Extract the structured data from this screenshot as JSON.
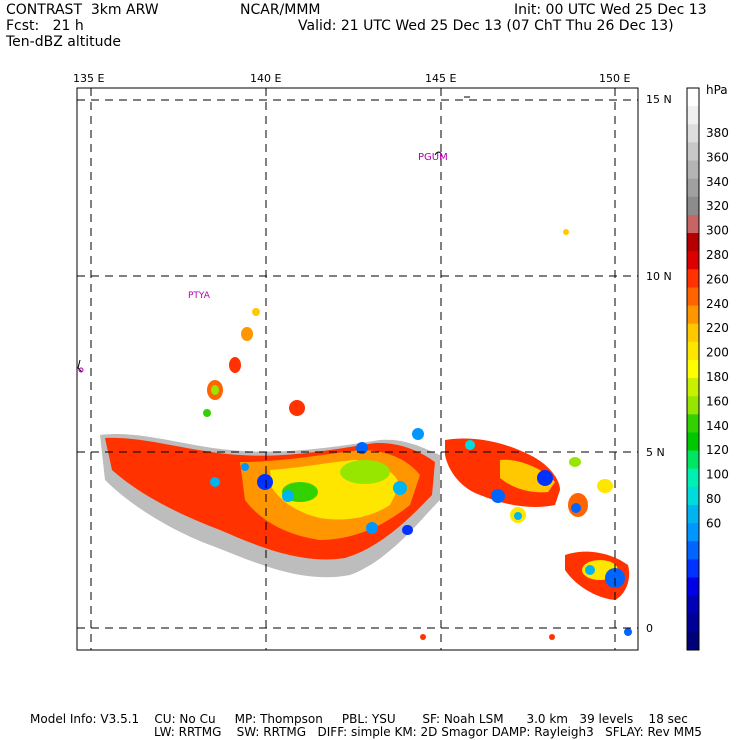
{
  "header": {
    "title_left": "CONTRAST  3km ARW",
    "forecast": "Fcst:   21 h",
    "field": "Ten-dBZ altitude",
    "center": "NCAR/MMM",
    "init": "Init: 00 UTC Wed 25 Dec 13",
    "valid": "Valid: 21 UTC Wed 25 Dec 13 (07 ChT Thu 26 Dec 13)"
  },
  "map": {
    "lon_labels": [
      "135 E",
      "140 E",
      "145 E",
      "150 E"
    ],
    "lat_labels": [
      "15 N",
      "10 N",
      "5 N",
      "0"
    ],
    "places": [
      "PGUM",
      "PTYA"
    ]
  },
  "colorbar": {
    "unit": "hPa",
    "labels": [
      "380",
      "360",
      "340",
      "320",
      "300",
      "280",
      "260",
      "240",
      "220",
      "200",
      "180",
      "160",
      "140",
      "120",
      "100",
      "80",
      "60"
    ],
    "colors": [
      "#ffffff",
      "#f0f0f0",
      "#dddddd",
      "#c8c8c8",
      "#b4b4b4",
      "#a0a0a0",
      "#8c8c8c",
      "#c86464",
      "#b40000",
      "#dc0000",
      "#ff3200",
      "#ff6400",
      "#ff9600",
      "#ffc800",
      "#ffe600",
      "#ffff00",
      "#c8f000",
      "#96e600",
      "#32d200",
      "#00c800",
      "#00e664",
      "#00f0b4",
      "#00dcdc",
      "#00b4f0",
      "#0096ff",
      "#0064ff",
      "#0032ff",
      "#0000e6",
      "#0000b4",
      "#000096",
      "#000078"
    ]
  },
  "footer": {
    "line1": "Model Info: V3.5.1    CU: No Cu     MP: Thompson     PBL: YSU       SF: Noah LSM      3.0 km   39 levels    18 sec",
    "line2": "LW: RRTMG    SW: RRTMG   DIFF: simple KM: 2D Smagor DAMP: Rayleigh3   SFLAY: Rev MM5"
  }
}
